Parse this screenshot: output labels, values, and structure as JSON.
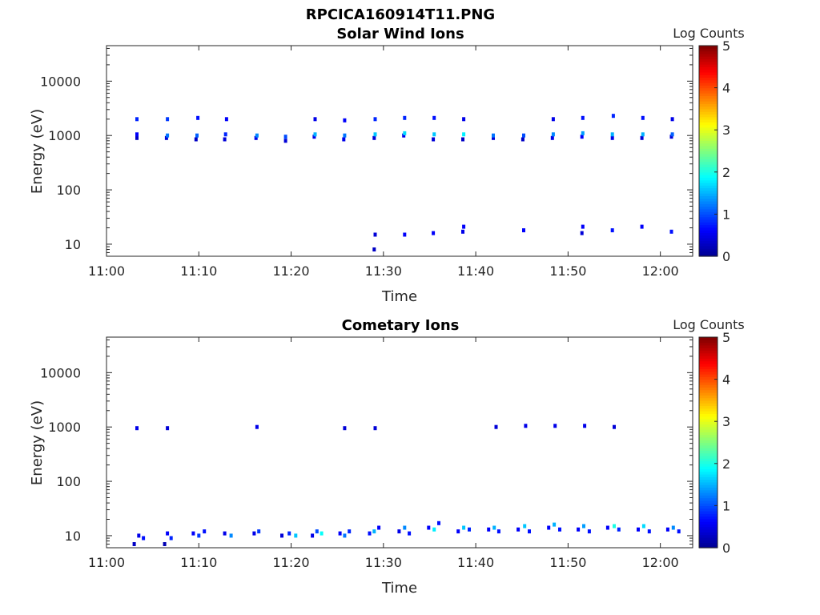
{
  "figure_title": "RPCICA160914T11.PNG",
  "colormap": [
    "#00008f",
    "#0000ff",
    "#007fff",
    "#00ffff",
    "#7fff7f",
    "#ffff00",
    "#ff7f00",
    "#ff0000",
    "#7f0000"
  ],
  "chart_data": [
    {
      "type": "heatmap",
      "title": "Solar Wind Ions",
      "xlabel": "Time",
      "ylabel": "Energy (eV)",
      "x_ticks": [
        "11:00",
        "11:10",
        "11:20",
        "11:30",
        "11:40",
        "11:50",
        "12:00"
      ],
      "xlim_minutes": [
        0,
        63.5
      ],
      "y_scale": "log",
      "y_ticks": [
        "10",
        "100",
        "1000",
        "10000"
      ],
      "ylim": [
        6,
        45000
      ],
      "colorbar_label": "Log Counts",
      "colorbar_ticks": [
        "0",
        "1",
        "2",
        "3",
        "4",
        "5"
      ],
      "clim": [
        0,
        5
      ],
      "cells": [
        {
          "t": 3.3,
          "e": 900,
          "c": 0.3
        },
        {
          "t": 3.3,
          "e": 1050,
          "c": 0.6
        },
        {
          "t": 3.3,
          "e": 2000,
          "c": 0.8
        },
        {
          "t": 6.5,
          "e": 900,
          "c": 0.4
        },
        {
          "t": 6.6,
          "e": 1000,
          "c": 1.2
        },
        {
          "t": 6.6,
          "e": 2000,
          "c": 0.9
        },
        {
          "t": 9.7,
          "e": 850,
          "c": 0.3
        },
        {
          "t": 9.8,
          "e": 1000,
          "c": 1.1
        },
        {
          "t": 9.9,
          "e": 2100,
          "c": 0.7
        },
        {
          "t": 12.8,
          "e": 850,
          "c": 0.4
        },
        {
          "t": 12.9,
          "e": 1050,
          "c": 0.8
        },
        {
          "t": 13.0,
          "e": 2000,
          "c": 0.6
        },
        {
          "t": 16.2,
          "e": 900,
          "c": 0.5
        },
        {
          "t": 16.3,
          "e": 1000,
          "c": 1.3
        },
        {
          "t": 19.4,
          "e": 800,
          "c": 0.4
        },
        {
          "t": 19.4,
          "e": 950,
          "c": 1.0
        },
        {
          "t": 22.5,
          "e": 950,
          "c": 0.5
        },
        {
          "t": 22.6,
          "e": 1050,
          "c": 1.5
        },
        {
          "t": 22.6,
          "e": 2000,
          "c": 0.5
        },
        {
          "t": 25.7,
          "e": 850,
          "c": 0.5
        },
        {
          "t": 25.8,
          "e": 1000,
          "c": 1.2
        },
        {
          "t": 25.8,
          "e": 1900,
          "c": 0.6
        },
        {
          "t": 29.0,
          "e": 900,
          "c": 0.4
        },
        {
          "t": 29.1,
          "e": 1050,
          "c": 1.6
        },
        {
          "t": 29.1,
          "e": 2000,
          "c": 0.8
        },
        {
          "t": 32.2,
          "e": 1000,
          "c": 0.5
        },
        {
          "t": 32.3,
          "e": 1100,
          "c": 1.7
        },
        {
          "t": 32.3,
          "e": 2100,
          "c": 0.8
        },
        {
          "t": 35.4,
          "e": 850,
          "c": 0.4
        },
        {
          "t": 35.5,
          "e": 1050,
          "c": 1.6
        },
        {
          "t": 35.5,
          "e": 2100,
          "c": 0.7
        },
        {
          "t": 38.6,
          "e": 850,
          "c": 0.3
        },
        {
          "t": 38.7,
          "e": 1050,
          "c": 1.8
        },
        {
          "t": 38.7,
          "e": 2000,
          "c": 0.5
        },
        {
          "t": 41.9,
          "e": 900,
          "c": 0.4
        },
        {
          "t": 41.9,
          "e": 1000,
          "c": 1.2
        },
        {
          "t": 45.1,
          "e": 850,
          "c": 0.3
        },
        {
          "t": 45.2,
          "e": 1000,
          "c": 1.0
        },
        {
          "t": 48.3,
          "e": 900,
          "c": 0.5
        },
        {
          "t": 48.4,
          "e": 1050,
          "c": 1.3
        },
        {
          "t": 48.4,
          "e": 2000,
          "c": 0.5
        },
        {
          "t": 51.5,
          "e": 950,
          "c": 0.6
        },
        {
          "t": 51.6,
          "e": 1100,
          "c": 1.4
        },
        {
          "t": 51.6,
          "e": 2100,
          "c": 0.7
        },
        {
          "t": 54.8,
          "e": 900,
          "c": 0.5
        },
        {
          "t": 54.8,
          "e": 1050,
          "c": 1.5
        },
        {
          "t": 54.9,
          "e": 2300,
          "c": 0.8
        },
        {
          "t": 58.0,
          "e": 900,
          "c": 0.4
        },
        {
          "t": 58.1,
          "e": 1050,
          "c": 1.5
        },
        {
          "t": 58.1,
          "e": 2100,
          "c": 0.7
        },
        {
          "t": 61.2,
          "e": 950,
          "c": 0.4
        },
        {
          "t": 61.3,
          "e": 1050,
          "c": 1.1
        },
        {
          "t": 61.3,
          "e": 2000,
          "c": 0.5
        },
        {
          "t": 29.0,
          "e": 8,
          "c": 0.3
        },
        {
          "t": 29.1,
          "e": 15,
          "c": 0.4
        },
        {
          "t": 32.3,
          "e": 15,
          "c": 0.6
        },
        {
          "t": 35.4,
          "e": 16,
          "c": 0.6
        },
        {
          "t": 38.6,
          "e": 17,
          "c": 0.5
        },
        {
          "t": 38.7,
          "e": 21,
          "c": 0.6
        },
        {
          "t": 45.2,
          "e": 18,
          "c": 0.6
        },
        {
          "t": 51.5,
          "e": 16,
          "c": 0.4
        },
        {
          "t": 51.6,
          "e": 21,
          "c": 0.6
        },
        {
          "t": 54.8,
          "e": 18,
          "c": 0.7
        },
        {
          "t": 58.0,
          "e": 21,
          "c": 0.6
        },
        {
          "t": 61.2,
          "e": 17,
          "c": 0.7
        }
      ]
    },
    {
      "type": "heatmap",
      "title": "Cometary Ions",
      "xlabel": "Time",
      "ylabel": "Energy (eV)",
      "x_ticks": [
        "11:00",
        "11:10",
        "11:20",
        "11:30",
        "11:40",
        "11:50",
        "12:00"
      ],
      "xlim_minutes": [
        0,
        63.5
      ],
      "y_scale": "log",
      "y_ticks": [
        "10",
        "100",
        "1000",
        "10000"
      ],
      "ylim": [
        6,
        45000
      ],
      "colorbar_label": "Log Counts",
      "colorbar_ticks": [
        "0",
        "1",
        "2",
        "3",
        "4",
        "5"
      ],
      "clim": [
        0,
        5
      ],
      "cells": [
        {
          "t": 3.3,
          "e": 950,
          "c": 0.5
        },
        {
          "t": 6.6,
          "e": 950,
          "c": 0.4
        },
        {
          "t": 16.3,
          "e": 1000,
          "c": 0.5
        },
        {
          "t": 25.8,
          "e": 950,
          "c": 0.4
        },
        {
          "t": 29.1,
          "e": 950,
          "c": 0.4
        },
        {
          "t": 42.2,
          "e": 1000,
          "c": 0.4
        },
        {
          "t": 45.4,
          "e": 1050,
          "c": 0.5
        },
        {
          "t": 48.6,
          "e": 1050,
          "c": 0.5
        },
        {
          "t": 51.8,
          "e": 1050,
          "c": 0.5
        },
        {
          "t": 55.0,
          "e": 1000,
          "c": 0.4
        },
        {
          "t": 3.0,
          "e": 7,
          "c": 0.3
        },
        {
          "t": 3.5,
          "e": 10,
          "c": 0.5
        },
        {
          "t": 4.0,
          "e": 9,
          "c": 0.7
        },
        {
          "t": 6.3,
          "e": 7,
          "c": 0.2
        },
        {
          "t": 6.6,
          "e": 11,
          "c": 0.6
        },
        {
          "t": 7.0,
          "e": 9,
          "c": 0.8
        },
        {
          "t": 9.4,
          "e": 11,
          "c": 0.6
        },
        {
          "t": 10.0,
          "e": 10,
          "c": 0.9
        },
        {
          "t": 10.6,
          "e": 12,
          "c": 0.7
        },
        {
          "t": 12.8,
          "e": 11,
          "c": 0.5
        },
        {
          "t": 13.5,
          "e": 10,
          "c": 1.3
        },
        {
          "t": 16.0,
          "e": 11,
          "c": 0.5
        },
        {
          "t": 16.5,
          "e": 12,
          "c": 0.9
        },
        {
          "t": 19.0,
          "e": 10,
          "c": 0.4
        },
        {
          "t": 19.8,
          "e": 11,
          "c": 0.8
        },
        {
          "t": 20.5,
          "e": 10,
          "c": 1.6
        },
        {
          "t": 22.3,
          "e": 10,
          "c": 0.5
        },
        {
          "t": 22.8,
          "e": 12,
          "c": 1.0
        },
        {
          "t": 23.3,
          "e": 11,
          "c": 1.9
        },
        {
          "t": 25.3,
          "e": 11,
          "c": 0.6
        },
        {
          "t": 25.8,
          "e": 10,
          "c": 1.2
        },
        {
          "t": 26.3,
          "e": 12,
          "c": 0.8
        },
        {
          "t": 28.5,
          "e": 11,
          "c": 0.7
        },
        {
          "t": 29.0,
          "e": 12,
          "c": 1.5
        },
        {
          "t": 29.5,
          "e": 14,
          "c": 0.6
        },
        {
          "t": 31.7,
          "e": 12,
          "c": 0.5
        },
        {
          "t": 32.3,
          "e": 14,
          "c": 1.3
        },
        {
          "t": 32.8,
          "e": 11,
          "c": 0.7
        },
        {
          "t": 34.9,
          "e": 14,
          "c": 0.6
        },
        {
          "t": 35.5,
          "e": 13,
          "c": 1.8
        },
        {
          "t": 36.0,
          "e": 17,
          "c": 0.7
        },
        {
          "t": 38.1,
          "e": 12,
          "c": 0.6
        },
        {
          "t": 38.7,
          "e": 14,
          "c": 1.6
        },
        {
          "t": 39.3,
          "e": 13,
          "c": 0.8
        },
        {
          "t": 41.4,
          "e": 13,
          "c": 0.6
        },
        {
          "t": 42.0,
          "e": 14,
          "c": 1.5
        },
        {
          "t": 42.5,
          "e": 12,
          "c": 0.7
        },
        {
          "t": 44.6,
          "e": 13,
          "c": 0.6
        },
        {
          "t": 45.3,
          "e": 15,
          "c": 1.6
        },
        {
          "t": 45.8,
          "e": 12,
          "c": 0.7
        },
        {
          "t": 47.9,
          "e": 14,
          "c": 0.6
        },
        {
          "t": 48.5,
          "e": 16,
          "c": 1.5
        },
        {
          "t": 49.1,
          "e": 13,
          "c": 0.7
        },
        {
          "t": 51.1,
          "e": 13,
          "c": 0.6
        },
        {
          "t": 51.7,
          "e": 15,
          "c": 1.4
        },
        {
          "t": 52.3,
          "e": 12,
          "c": 0.7
        },
        {
          "t": 54.3,
          "e": 14,
          "c": 0.6
        },
        {
          "t": 55.0,
          "e": 15,
          "c": 2.0
        },
        {
          "t": 55.5,
          "e": 13,
          "c": 0.8
        },
        {
          "t": 57.6,
          "e": 13,
          "c": 0.6
        },
        {
          "t": 58.2,
          "e": 15,
          "c": 1.7
        },
        {
          "t": 58.8,
          "e": 12,
          "c": 0.7
        },
        {
          "t": 60.8,
          "e": 13,
          "c": 0.6
        },
        {
          "t": 61.4,
          "e": 14,
          "c": 1.3
        },
        {
          "t": 62.0,
          "e": 12,
          "c": 0.7
        }
      ]
    }
  ]
}
